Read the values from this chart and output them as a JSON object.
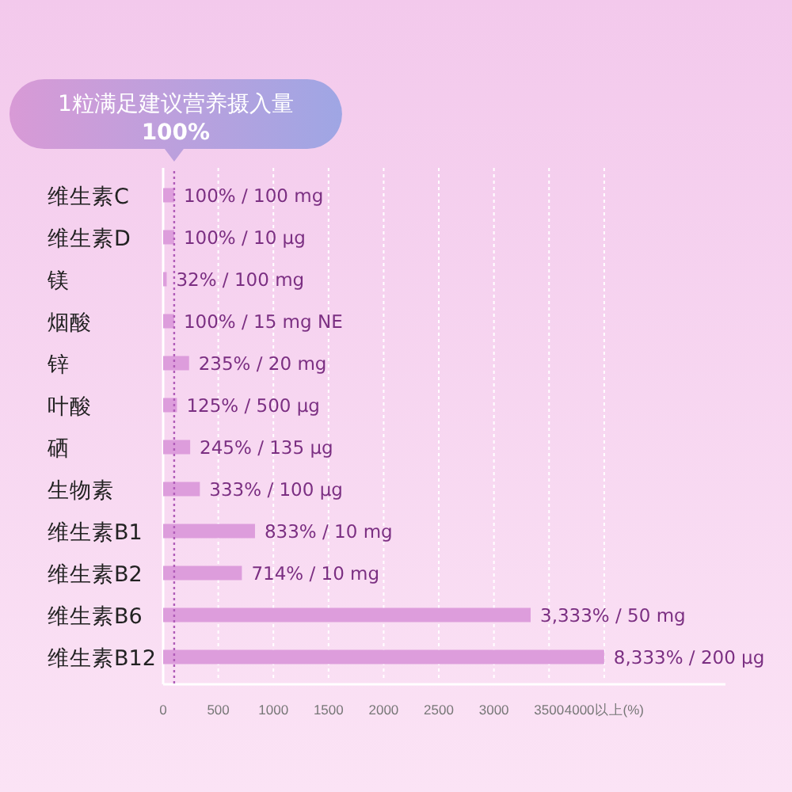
{
  "chart_data": {
    "type": "bar",
    "orientation": "horizontal",
    "categories": [
      "维生素C",
      "维生素D",
      "镁",
      "烟酸",
      "锌",
      "叶酸",
      "硒",
      "生物素",
      "维生素B1",
      "维生素B2",
      "维生素B6",
      "维生素B12"
    ],
    "values": [
      100,
      100,
      32,
      100,
      235,
      125,
      245,
      333,
      833,
      714,
      3333,
      4000
    ],
    "value_labels": [
      "100% / 100 mg",
      "100% / 10 μg",
      "32% / 100 mg",
      "100% / 15 mg NE",
      "235% / 20 mg",
      "125% / 500 μg",
      "245% / 135 μg",
      "333% / 100 μg",
      "833% / 10 mg",
      "714% / 10 mg",
      "3,333% / 50 mg",
      null
    ],
    "annotations": [
      {
        "text": "8,333% / 200 μg",
        "x": 4000,
        "y": "维生素B12"
      }
    ],
    "color": "#dd9ddc",
    "xlim": [
      0,
      5100
    ],
    "xticks": [
      0,
      500,
      1000,
      1500,
      2000,
      2500,
      3000,
      3500,
      {
        "value": 4000,
        "label": "4000以上(%)"
      }
    ],
    "grid": "x",
    "ref_lines": [
      {
        "axis": "x",
        "value": 100,
        "label": "1粒满足建议营养摄入量\n100%",
        "color": "#b05cb8",
        "line_style": "dotted"
      }
    ]
  }
}
